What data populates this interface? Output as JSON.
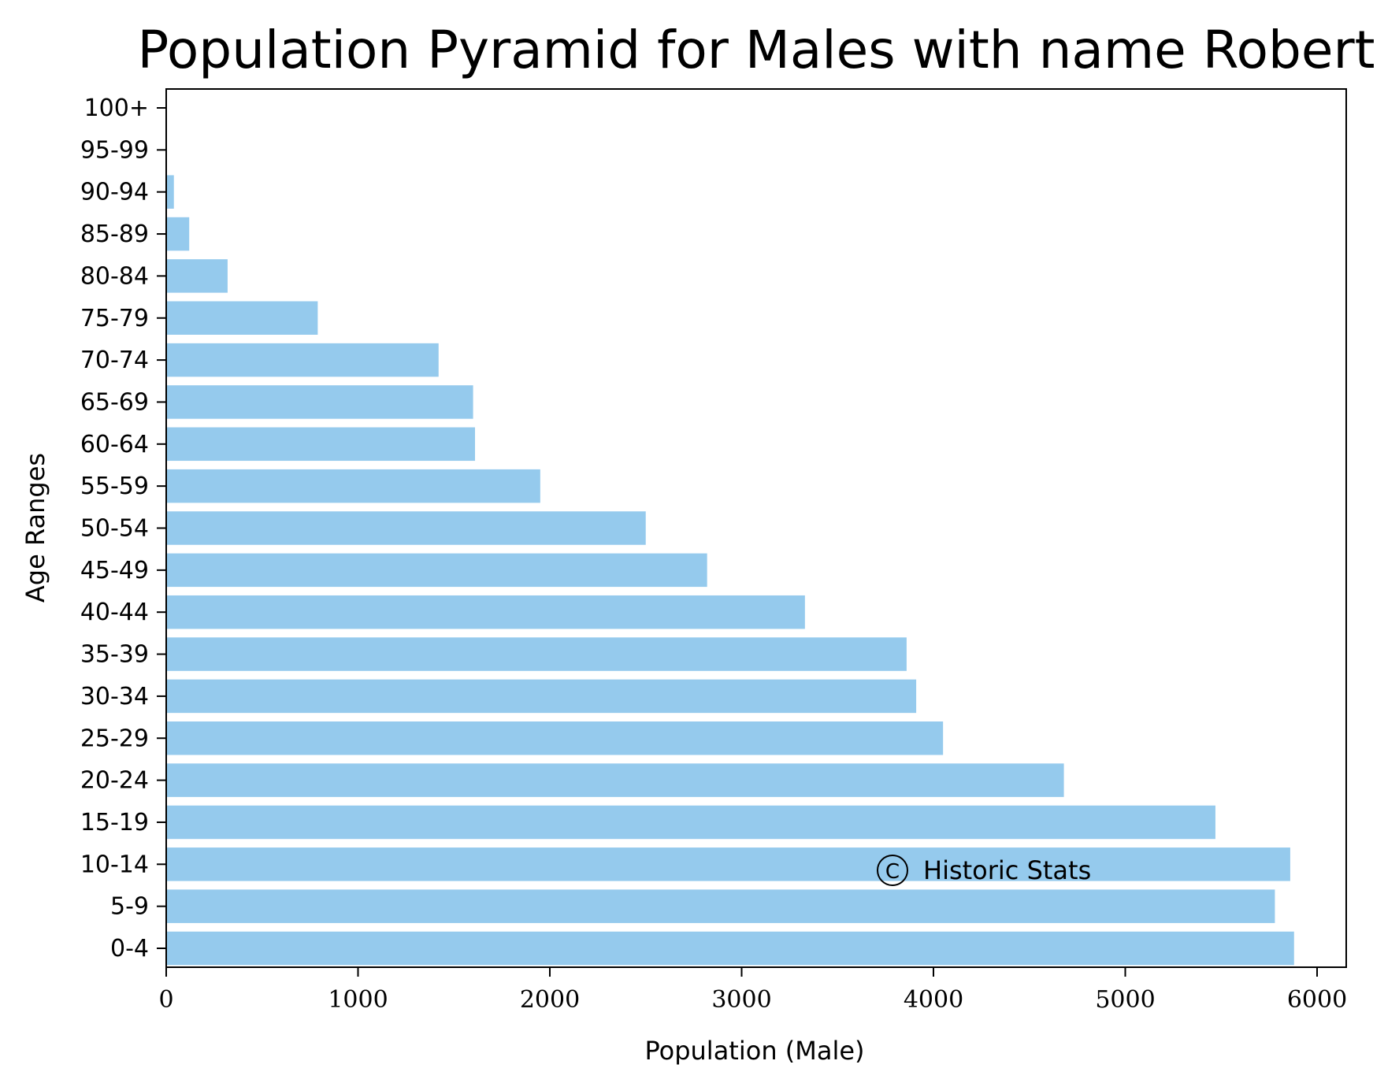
{
  "chart_data": {
    "type": "bar",
    "orientation": "horizontal",
    "title": "Population Pyramid for Males with name Robert",
    "xlabel": "Population (Male)",
    "ylabel": "Age Ranges",
    "categories": [
      "0-4",
      "5-9",
      "10-14",
      "15-19",
      "20-24",
      "25-29",
      "30-34",
      "35-39",
      "40-44",
      "45-49",
      "50-54",
      "55-59",
      "60-64",
      "65-69",
      "70-74",
      "75-79",
      "80-84",
      "85-89",
      "90-94",
      "95-99",
      "100+"
    ],
    "values": [
      5880,
      5780,
      5860,
      5470,
      4680,
      4050,
      3910,
      3860,
      3330,
      2820,
      2500,
      1950,
      1610,
      1600,
      1420,
      790,
      320,
      120,
      40,
      0,
      0
    ],
    "xticks": [
      0,
      1000,
      2000,
      3000,
      4000,
      5000,
      6000
    ],
    "xlim": [
      0,
      6174
    ],
    "bar_color": "#95caed",
    "grid": false,
    "annotation": "Historic Stats"
  }
}
